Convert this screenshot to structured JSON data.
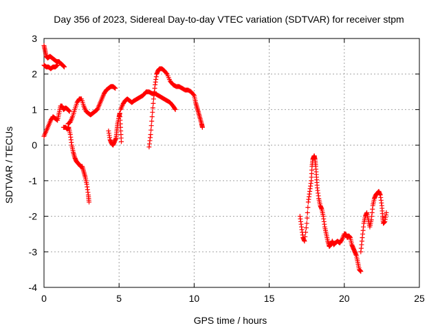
{
  "chart_data": {
    "type": "scatter",
    "title": "Day 356 of 2023, Sidereal Day-to-day VTEC variation (SDTVAR) for receiver stpm",
    "xlabel": "GPS time / hours",
    "ylabel": "SDTVAR / TECUs",
    "xlim": [
      0,
      25
    ],
    "ylim": [
      -4,
      3
    ],
    "xticks": [
      0,
      5,
      10,
      15,
      20,
      25
    ],
    "yticks": [
      -4,
      -3,
      -2,
      -1,
      0,
      1,
      2,
      3
    ],
    "xtick_labels": [
      "0",
      "5",
      "10",
      "15",
      "20",
      "25"
    ],
    "ytick_labels": [
      "-4",
      "-3",
      "-2",
      "-1",
      "0",
      "1",
      "2",
      "3"
    ],
    "grid": true,
    "marker": "plus",
    "color": "#ff0000",
    "series": [
      {
        "x": [
          0.0,
          0.08,
          0.15,
          0.25,
          0.4,
          0.55,
          0.7,
          0.85,
          1.0,
          1.1,
          1.25,
          1.35
        ],
        "y": [
          2.8,
          2.65,
          2.5,
          2.45,
          2.5,
          2.45,
          2.4,
          2.35,
          2.35,
          2.3,
          2.25,
          2.2
        ]
      },
      {
        "x": [
          0.0,
          0.15,
          0.3,
          0.45,
          0.6,
          0.75,
          0.9
        ],
        "y": [
          2.25,
          2.2,
          2.2,
          2.15,
          2.2,
          2.2,
          2.25
        ]
      },
      {
        "x": [
          0.0,
          0.15,
          0.3,
          0.45,
          0.6,
          0.75,
          0.9,
          1.0,
          1.1,
          1.2,
          1.3,
          1.45,
          1.6,
          1.7
        ],
        "y": [
          0.25,
          0.4,
          0.55,
          0.7,
          0.8,
          0.75,
          0.7,
          0.9,
          1.1,
          1.1,
          1.0,
          1.05,
          1.0,
          0.95
        ]
      },
      {
        "x": [
          1.3,
          1.45,
          1.55,
          1.65,
          1.75,
          1.85,
          1.95,
          2.05,
          2.15,
          2.25,
          2.35,
          2.45,
          2.55,
          2.65,
          2.75,
          2.85,
          2.95,
          3.0
        ],
        "y": [
          0.5,
          0.5,
          0.45,
          0.5,
          0.3,
          0.0,
          -0.2,
          -0.35,
          -0.45,
          -0.5,
          -0.55,
          -0.6,
          -0.6,
          -0.75,
          -0.9,
          -1.1,
          -1.4,
          -1.6
        ]
      },
      {
        "x": [
          1.6,
          1.75,
          1.9,
          2.05,
          2.2,
          2.35,
          2.5,
          2.65,
          2.8,
          2.95,
          3.1,
          3.25,
          3.4,
          3.55,
          3.7,
          3.85,
          4.0,
          4.15,
          4.3,
          4.45,
          4.6,
          4.75
        ],
        "y": [
          0.6,
          0.65,
          0.8,
          1.0,
          1.2,
          1.3,
          1.3,
          1.1,
          0.95,
          0.9,
          0.85,
          0.9,
          0.95,
          1.0,
          1.15,
          1.3,
          1.45,
          1.55,
          1.6,
          1.65,
          1.65,
          1.6
        ]
      },
      {
        "x": [
          4.3,
          4.4,
          4.5,
          4.6,
          4.7,
          4.8,
          4.85,
          4.9,
          5.0,
          5.05,
          5.1,
          5.15
        ],
        "y": [
          0.4,
          0.15,
          0.05,
          0.0,
          0.1,
          0.2,
          0.4,
          0.6,
          0.8,
          0.9,
          0.5,
          0.1
        ]
      },
      {
        "x": [
          5.1,
          5.25,
          5.4,
          5.55,
          5.7,
          5.85,
          6.0,
          6.2,
          6.4,
          6.6,
          6.8,
          7.0,
          7.2,
          7.4,
          7.6,
          7.8,
          8.0,
          8.2,
          8.4,
          8.6,
          8.75
        ],
        "y": [
          1.0,
          1.15,
          1.25,
          1.3,
          1.25,
          1.2,
          1.25,
          1.3,
          1.35,
          1.4,
          1.5,
          1.5,
          1.45,
          1.45,
          1.4,
          1.35,
          1.3,
          1.25,
          1.2,
          1.1,
          1.0
        ]
      },
      {
        "x": [
          7.0,
          7.1,
          7.2,
          7.3,
          7.4,
          7.5,
          7.6,
          7.7,
          7.85,
          8.0,
          8.2,
          8.4,
          8.6,
          8.8,
          9.0,
          9.2,
          9.4,
          9.6,
          9.8,
          10.0,
          10.1,
          10.2,
          10.3,
          10.4,
          10.5,
          10.55
        ],
        "y": [
          -0.05,
          0.3,
          0.8,
          1.3,
          1.7,
          2.0,
          2.1,
          2.15,
          2.15,
          2.1,
          2.0,
          1.8,
          1.7,
          1.65,
          1.65,
          1.6,
          1.55,
          1.55,
          1.5,
          1.4,
          1.2,
          1.05,
          0.9,
          0.75,
          0.6,
          0.5
        ]
      },
      {
        "x": [
          17.05,
          17.15,
          17.25,
          17.35,
          17.5,
          17.6,
          17.7,
          17.8,
          17.85,
          17.9,
          17.95,
          18.0,
          18.05,
          18.1,
          18.15,
          18.2,
          18.3,
          18.4,
          18.5,
          18.6,
          18.7,
          18.8,
          18.9,
          19.0,
          19.1,
          19.2,
          19.3,
          19.4,
          19.55,
          19.7,
          19.85,
          20.0,
          20.1,
          20.2,
          20.3,
          20.4,
          20.5,
          20.6,
          20.7,
          20.8,
          20.9,
          21.0,
          21.1
        ],
        "y": [
          -2.0,
          -2.3,
          -2.6,
          -2.7,
          -2.2,
          -1.6,
          -1.3,
          -1.0,
          -0.6,
          -0.4,
          -0.35,
          -0.3,
          -0.4,
          -0.6,
          -0.9,
          -1.2,
          -1.5,
          -1.7,
          -1.8,
          -2.0,
          -2.3,
          -2.5,
          -2.7,
          -2.85,
          -2.8,
          -2.7,
          -2.8,
          -2.75,
          -2.7,
          -2.75,
          -2.65,
          -2.5,
          -2.5,
          -2.6,
          -2.55,
          -2.6,
          -2.8,
          -2.9,
          -3.0,
          -3.1,
          -3.3,
          -3.5,
          -3.55
        ]
      },
      {
        "x": [
          21.1,
          21.2,
          21.3,
          21.4,
          21.5,
          21.6,
          21.7,
          21.8,
          21.9,
          22.0,
          22.1,
          22.2,
          22.3,
          22.4,
          22.5,
          22.55,
          22.6,
          22.7,
          22.8
        ],
        "y": [
          -3.0,
          -2.6,
          -2.2,
          -2.0,
          -1.9,
          -2.1,
          -2.3,
          -2.1,
          -1.7,
          -1.5,
          -1.4,
          -1.35,
          -1.3,
          -1.4,
          -1.7,
          -2.0,
          -2.2,
          -2.15,
          -1.9
        ]
      }
    ]
  }
}
